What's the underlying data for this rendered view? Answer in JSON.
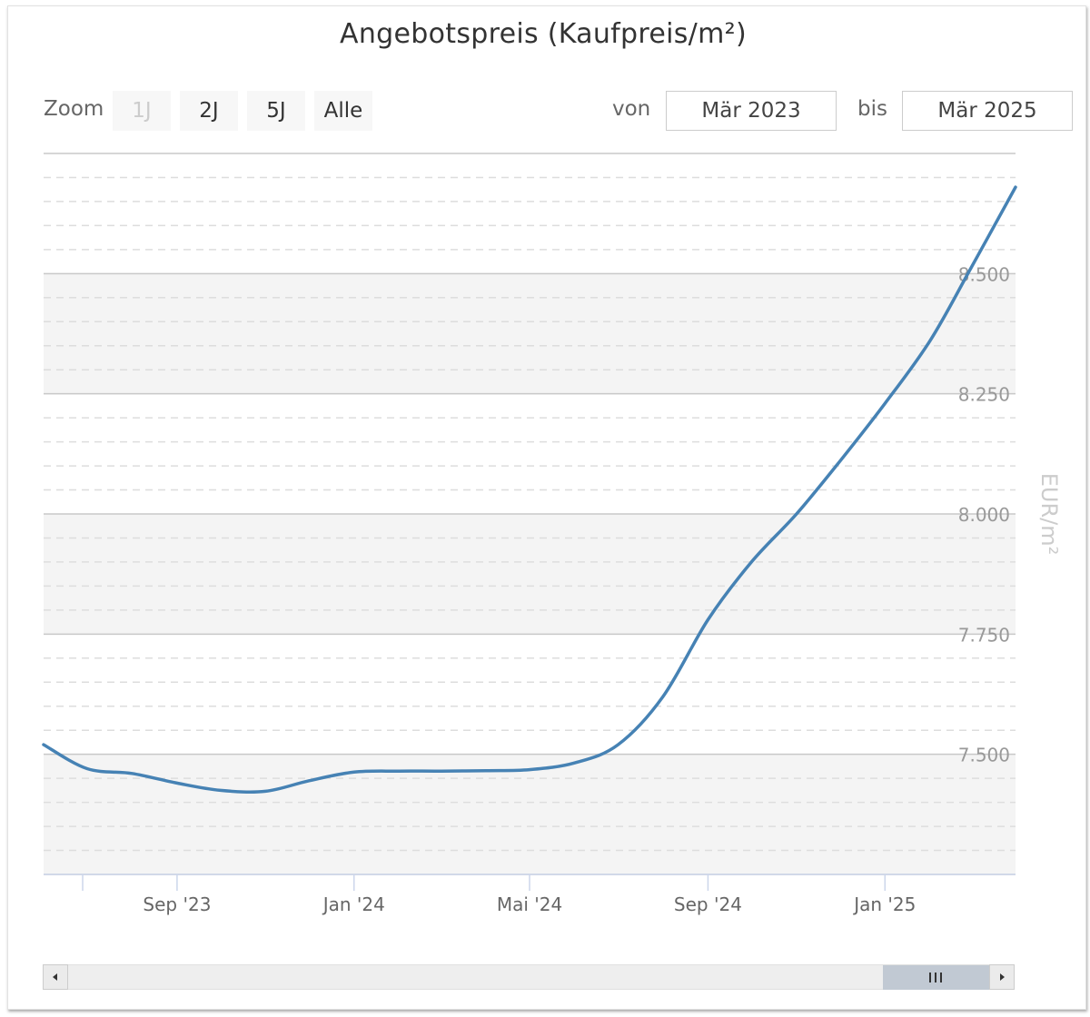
{
  "chart_data": {
    "type": "line",
    "title": "Angebotspreis (Kaufpreis/m²)",
    "ylabel": "EUR/m²",
    "xlabel": "",
    "x_ticks": [
      "Sep '23",
      "Jan '24",
      "Mai '24",
      "Sep '24",
      "Jan '25"
    ],
    "y_ticks": [
      "7.500",
      "7.750",
      "8.000",
      "8.250",
      "8.500"
    ],
    "y_tick_values": [
      7500,
      7750,
      8000,
      8250,
      8500
    ],
    "ylim": [
      7250,
      8750
    ],
    "xlim": [
      "2023-06-01",
      "2025-04-01"
    ],
    "grid": true,
    "legend": "none",
    "series": [
      {
        "color": "#4682b4",
        "x": [
          "2023-06-01",
          "2023-07-01",
          "2023-08-01",
          "2023-09-01",
          "2023-10-01",
          "2023-11-01",
          "2023-12-01",
          "2024-01-01",
          "2024-02-01",
          "2024-03-01",
          "2024-04-01",
          "2024-05-01",
          "2024-06-01",
          "2024-07-01",
          "2024-08-01",
          "2024-09-01",
          "2024-10-01",
          "2024-11-01",
          "2024-12-01",
          "2025-01-01",
          "2025-02-01",
          "2025-03-01",
          "2025-04-01"
        ],
        "values": [
          7520,
          7470,
          7460,
          7440,
          7425,
          7423,
          7445,
          7463,
          7465,
          7465,
          7466,
          7468,
          7482,
          7520,
          7620,
          7780,
          7900,
          8000,
          8110,
          8230,
          8360,
          8510,
          8680
        ]
      }
    ]
  },
  "controls": {
    "zoom_label": "Zoom",
    "zoom_buttons": [
      "1J",
      "2J",
      "5J",
      "Alle"
    ],
    "from_label": "von",
    "from_value": "Mär 2023",
    "to_label": "bis",
    "to_value": "Mär 2025"
  },
  "colors": {
    "line": "#4682b4",
    "band": "#f4f4f4",
    "grid_dash": "#dddddd",
    "axis": "#ccd6eb",
    "thumb": "#c1c9d3"
  }
}
